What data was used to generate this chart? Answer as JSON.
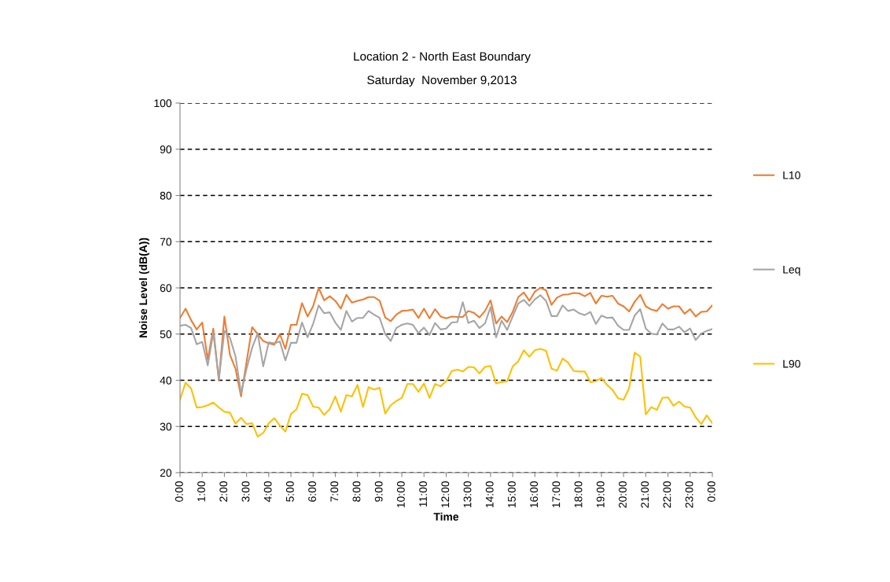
{
  "chart_data": {
    "type": "line",
    "title": "Location 2 - North East Boundary",
    "subtitle": "Saturday  November 9,2013",
    "xlabel": "Time",
    "ylabel": "Noise Level (dB(A))",
    "x": [
      0,
      0.25,
      0.5,
      0.75,
      1,
      1.25,
      1.5,
      1.75,
      2,
      2.25,
      2.5,
      2.75,
      3,
      3.25,
      3.5,
      3.75,
      4,
      4.25,
      4.5,
      4.75,
      5,
      5.25,
      5.5,
      5.75,
      6,
      6.25,
      6.5,
      6.75,
      7,
      7.25,
      7.5,
      7.75,
      8,
      8.25,
      8.5,
      8.75,
      9,
      9.25,
      9.5,
      9.75,
      10,
      10.25,
      10.5,
      10.75,
      11,
      11.25,
      11.5,
      11.75,
      12,
      12.25,
      12.5,
      12.75,
      13,
      13.25,
      13.5,
      13.75,
      14,
      14.25,
      14.5,
      14.75,
      15,
      15.25,
      15.5,
      15.75,
      16,
      16.25,
      16.5,
      16.75,
      17,
      17.25,
      17.5,
      17.75,
      18,
      18.25,
      18.5,
      18.75,
      19,
      19.25,
      19.5,
      19.75,
      20,
      20.25,
      20.5,
      20.75,
      21,
      21.25,
      21.5,
      21.75,
      22,
      22.25,
      22.5,
      22.75,
      23,
      23.25,
      23.5,
      23.75,
      24
    ],
    "series": [
      {
        "name": "L10",
        "color": "#ed7d31",
        "values": [
          53.5,
          55.5,
          53,
          51,
          52.5,
          44.5,
          51.2,
          40,
          53.8,
          45.5,
          42.5,
          36.5,
          44,
          51.5,
          50,
          48.5,
          48,
          47.7,
          50,
          46.8,
          52,
          52,
          56.7,
          53.8,
          56,
          60,
          57.3,
          58.2,
          57.2,
          55.5,
          58.5,
          56.8,
          57.2,
          57.5,
          58,
          58,
          57.2,
          53.6,
          52.8,
          54.2,
          55,
          55.1,
          55.3,
          53.5,
          55.5,
          53.4,
          55.4,
          53.8,
          53.4,
          53.8,
          53.7,
          53.7,
          55,
          54.6,
          53.6,
          55,
          57.3,
          52.3,
          53.8,
          52.6,
          54.8,
          58,
          59,
          57.2,
          59.2,
          60,
          59.5,
          56.3,
          57.9,
          58.5,
          58.6,
          58.9,
          58.8,
          58.2,
          58.9,
          56.6,
          58.3,
          58.1,
          58.3,
          56.6,
          56,
          54.9,
          57,
          58.5,
          56,
          55.3,
          55,
          56.5,
          55.5,
          56,
          56,
          54.4,
          55.4,
          53.8,
          54.8,
          54.9,
          56.2
        ]
      },
      {
        "name": "Leq",
        "color": "#a5a5a5",
        "values": [
          51.8,
          52,
          51.3,
          47.8,
          48.3,
          43.2,
          50.3,
          40.2,
          50.7,
          49.2,
          45.2,
          37.2,
          42.5,
          47,
          50.2,
          43,
          48.2,
          48,
          48.4,
          44.3,
          48.1,
          48.1,
          52.5,
          49.3,
          52.2,
          56.2,
          54.5,
          54.7,
          52.5,
          50.9,
          55,
          52.7,
          53.5,
          53.5,
          55,
          54.2,
          53.5,
          50,
          48.5,
          51.3,
          52,
          52.3,
          52,
          50.2,
          51.4,
          49.8,
          52.4,
          51,
          51.2,
          52.5,
          52.6,
          56.9,
          52.4,
          52.9,
          51.3,
          52.3,
          55.8,
          49.3,
          52.9,
          50.9,
          53.8,
          56.6,
          57.4,
          56.1,
          57.5,
          58.4,
          57.2,
          53.9,
          53.9,
          56.2,
          55,
          55.3,
          54.5,
          54.1,
          54.8,
          52.2,
          54,
          53.5,
          53.6,
          51.8,
          50.9,
          50.9,
          54,
          55.4,
          51.2,
          50.1,
          49.9,
          52.3,
          51,
          51,
          51.6,
          50.4,
          51.2,
          48.7,
          50.1,
          50.7,
          51.1
        ]
      },
      {
        "name": "L90",
        "color": "#ffc000",
        "values": [
          35.8,
          39.5,
          38.2,
          34.1,
          34.2,
          34.6,
          35.2,
          34.1,
          33.2,
          33,
          30.6,
          31.9,
          30.5,
          30.7,
          27.8,
          28.6,
          30.7,
          31.8,
          30.2,
          28.9,
          32.7,
          33.7,
          37.1,
          36.8,
          34.3,
          34.1,
          32.5,
          33.8,
          36.5,
          33.2,
          36.8,
          36.5,
          39,
          34.2,
          38.5,
          38,
          38.4,
          32.8,
          34.6,
          35.5,
          36.2,
          39.2,
          39.2,
          37.5,
          39.3,
          36.2,
          39.2,
          38.7,
          39.8,
          42,
          42.3,
          41.9,
          42.9,
          42.8,
          41.5,
          42.9,
          43.1,
          39.3,
          39.6,
          39.8,
          43,
          44.1,
          46.5,
          45.1,
          46.5,
          46.8,
          46.4,
          42.5,
          42.1,
          44.7,
          43.8,
          42,
          41.9,
          41.9,
          39.6,
          39.8,
          40.5,
          39,
          37.9,
          36.1,
          35.8,
          38.3,
          46,
          45.1,
          32.6,
          34.2,
          33.6,
          36.2,
          36.3,
          34.5,
          35.4,
          34.3,
          34.1,
          32,
          30.5,
          32.4,
          30.7
        ]
      }
    ],
    "xlim": [
      0,
      24
    ],
    "xticks": [
      {
        "value": 0,
        "label": "0:00"
      },
      {
        "value": 1,
        "label": "1:00"
      },
      {
        "value": 2,
        "label": "2:00"
      },
      {
        "value": 3,
        "label": "3:00"
      },
      {
        "value": 4,
        "label": "4:00"
      },
      {
        "value": 5,
        "label": "5:00"
      },
      {
        "value": 6,
        "label": "6:00"
      },
      {
        "value": 7,
        "label": "7:00"
      },
      {
        "value": 8,
        "label": "8:00"
      },
      {
        "value": 9,
        "label": "9:00"
      },
      {
        "value": 10,
        "label": "10:00"
      },
      {
        "value": 11,
        "label": "11:00"
      },
      {
        "value": 12,
        "label": "12:00"
      },
      {
        "value": 13,
        "label": "13:00"
      },
      {
        "value": 14,
        "label": "14:00"
      },
      {
        "value": 15,
        "label": "15:00"
      },
      {
        "value": 16,
        "label": "16:00"
      },
      {
        "value": 17,
        "label": "17:00"
      },
      {
        "value": 18,
        "label": "18:00"
      },
      {
        "value": 19,
        "label": "19:00"
      },
      {
        "value": 20,
        "label": "20:00"
      },
      {
        "value": 21,
        "label": "21:00"
      },
      {
        "value": 22,
        "label": "22:00"
      },
      {
        "value": 23,
        "label": "23:00"
      },
      {
        "value": 24,
        "label": "0:00"
      }
    ],
    "ylim": [
      20,
      100
    ],
    "yticks": [
      20,
      30,
      40,
      50,
      60,
      70,
      80,
      90,
      100
    ],
    "grid": "y",
    "legend": "right",
    "marker": "none",
    "line_style": "solid"
  }
}
